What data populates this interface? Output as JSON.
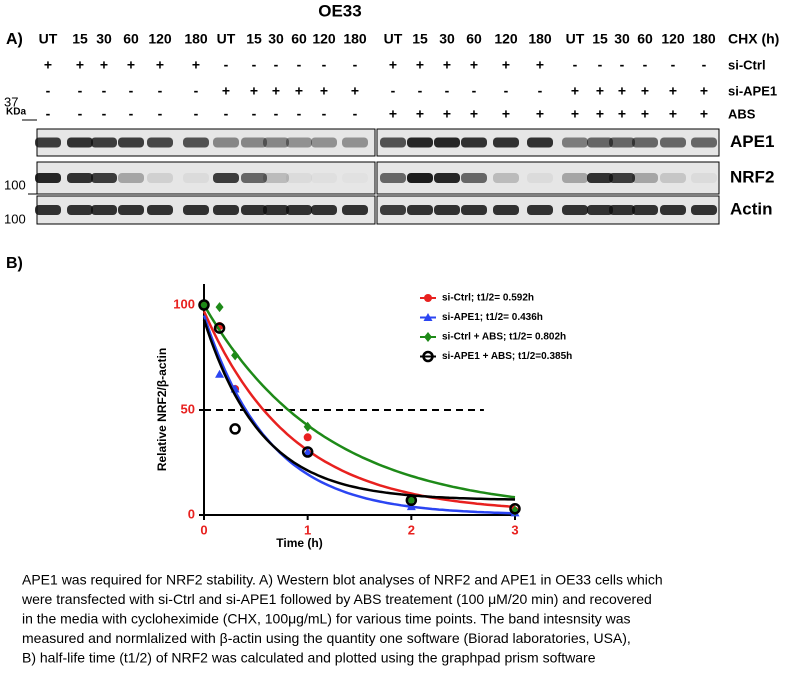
{
  "figure_title": "OE33",
  "panel_a": {
    "label": "A)",
    "lane_row_label": "CHX (h)",
    "lanes": [
      "UT",
      "15",
      "30",
      "60",
      "120",
      "180",
      "UT",
      "15",
      "30",
      "60",
      "120",
      "180",
      "UT",
      "15",
      "30",
      "60",
      "120",
      "180",
      "UT",
      "15",
      "30",
      "60",
      "120",
      "180"
    ],
    "conditions": [
      {
        "name": "si-Ctrl",
        "signs": [
          "+",
          "+",
          "+",
          "+",
          "+",
          "+",
          "-",
          "-",
          "-",
          "-",
          "-",
          "-",
          "+",
          "+",
          "+",
          "+",
          "+",
          "+",
          "-",
          "-",
          "-",
          "-",
          "-",
          "-"
        ]
      },
      {
        "name": "si-APE1",
        "signs": [
          "-",
          "-",
          "-",
          "-",
          "-",
          "-",
          "+",
          "+",
          "+",
          "+",
          "+",
          "+",
          "-",
          "-",
          "-",
          "-",
          "-",
          "-",
          "+",
          "+",
          "+",
          "+",
          "+",
          "+"
        ]
      },
      {
        "name": "ABS",
        "signs": [
          "-",
          "-",
          "-",
          "-",
          "-",
          "-",
          "-",
          "-",
          "-",
          "-",
          "-",
          "-",
          "+",
          "+",
          "+",
          "+",
          "+",
          "+",
          "+",
          "+",
          "+",
          "+",
          "+",
          "+"
        ]
      }
    ],
    "kda_label": "KDa",
    "markers": [
      37,
      100,
      100
    ],
    "blots": [
      "APE1",
      "NRF2",
      "Actin"
    ]
  },
  "panel_b_label": "B)",
  "chart_data": {
    "type": "scatter",
    "x_label": "Time (h)",
    "y_label": "Relative NRF2/β-actin",
    "x": [
      0,
      0.15,
      0.3,
      1,
      2,
      3
    ],
    "xlim": [
      0,
      3
    ],
    "xticks": [
      0,
      1,
      2,
      3
    ],
    "ylim": [
      0,
      110
    ],
    "yticks": [
      0,
      50,
      100
    ],
    "hline": {
      "y": 50,
      "xmax": 2.7
    },
    "series": [
      {
        "name": "si-Ctrl; t1/2= 0.592h",
        "color": "#e8211f",
        "marker": "circle",
        "values": [
          100,
          90,
          60,
          37,
          8,
          2
        ],
        "fit": {
          "y0": 97,
          "plateau": 1,
          "half_life": 0.592
        }
      },
      {
        "name": "si-APE1; t1/2= 0.436h",
        "color": "#2b45f2",
        "marker": "triangle",
        "values": [
          100,
          67,
          60,
          30,
          4,
          1
        ],
        "fit": {
          "y0": 95,
          "plateau": 0,
          "half_life": 0.436
        }
      },
      {
        "name": "si-Ctrl + ABS; t1/2= 0.802h",
        "color": "#1e8a18",
        "marker": "diamond",
        "values": [
          100,
          99,
          76,
          42,
          7,
          2
        ],
        "fit": {
          "y0": 100,
          "plateau": 1,
          "half_life": 0.802
        }
      },
      {
        "name": "si-APE1 + ABS; t1/2=0.385h",
        "color": "#000000",
        "marker": "open-circle",
        "values": [
          100,
          89,
          41,
          30,
          7,
          3
        ],
        "fit": {
          "y0": 93,
          "plateau": 7,
          "half_life": 0.385
        }
      }
    ]
  },
  "caption": [
    "APE1 was required for NRF2 stability. A) Western blot analyses of NRF2 and APE1 in OE33 cells which",
    "were transfected with si-Ctrl and si-APE1 followed by ABS treatement (100 μM/20 min) and recovered",
    "in the media with cycloheximide (CHX, 100μg/mL) for various time points. The band intesnsity was",
    "measured and normlalized with β-actin using the quantity one software (Biorad laboratories, USA),",
    "B) half-life time (t1/2) of NRF2 was calculated and plotted using the graphpad prism software"
  ]
}
